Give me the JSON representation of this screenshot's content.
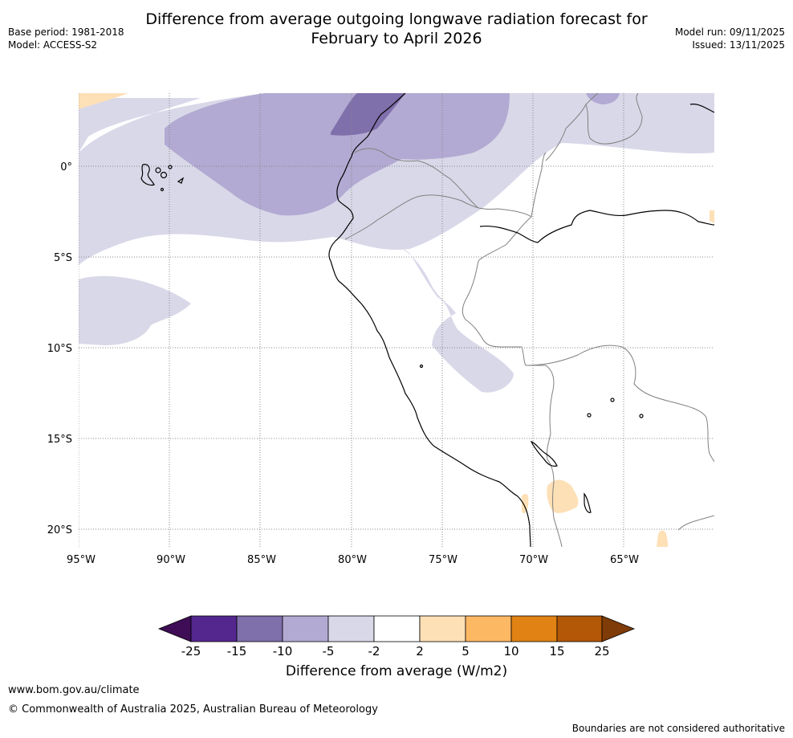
{
  "title_line1": "Difference from average outgoing longwave radiation forecast for",
  "title_line2": "February to April 2026",
  "base_period": "Base period: 1981-2018",
  "model": "Model: ACCESS-S2",
  "model_run": "Model run: 09/11/2025",
  "issued": "Issued: 13/11/2025",
  "lat_labels": [
    "0°",
    "5°S",
    "10°S",
    "15°S",
    "20°S"
  ],
  "lon_labels": [
    "95°W",
    "90°W",
    "85°W",
    "80°W",
    "75°W",
    "70°W",
    "65°W"
  ],
  "colorbar": {
    "ticks": [
      "-25",
      "-15",
      "-10",
      "-5",
      "-2",
      "2",
      "5",
      "10",
      "15",
      "25"
    ],
    "colors": [
      "#3f0d55",
      "#54278f",
      "#7f6fab",
      "#b2aad2",
      "#d9d8e9",
      "#ffffff",
      "#fee0b6",
      "#fdb863",
      "#e08214",
      "#b35806",
      "#7f3b08"
    ],
    "title": "Difference from average (W/m2)"
  },
  "footer": {
    "url": "www.bom.gov.au/climate",
    "copyright": "© Commonwealth of Australia 2025, Australian Bureau of Meteorology",
    "disclaimer": "Boundaries are not considered authoritative"
  }
}
